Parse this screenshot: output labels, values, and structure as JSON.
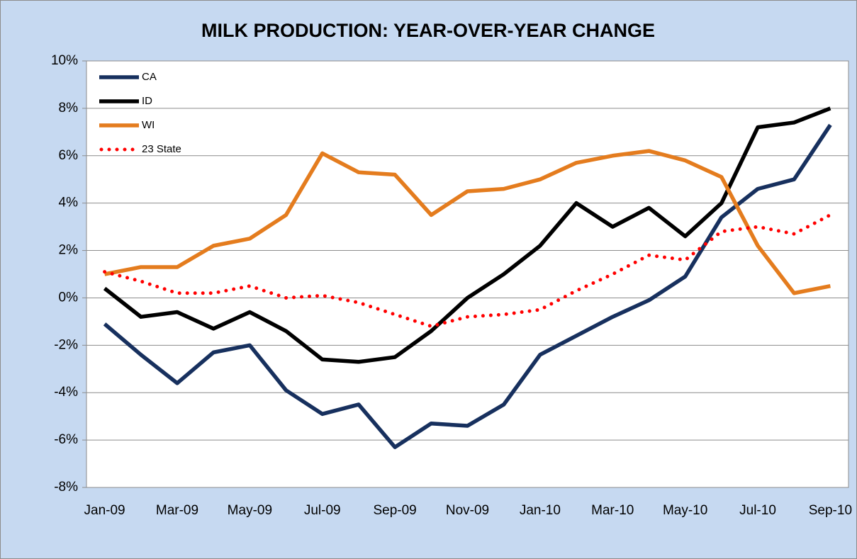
{
  "chart_data": {
    "type": "line",
    "title": "MILK PRODUCTION: YEAR-OVER-YEAR CHANGE",
    "categories": [
      "Jan-09",
      null,
      "Mar-09",
      null,
      "May-09",
      null,
      "Jul-09",
      null,
      "Sep-09",
      null,
      "Nov-09",
      null,
      "Jan-10",
      null,
      "Mar-10",
      null,
      "May-10",
      null,
      "Jul-10",
      null,
      "Sep-10"
    ],
    "series": [
      {
        "name": "CA",
        "color": "#17305e",
        "style": "solid",
        "values": [
          -1.1,
          -2.4,
          -3.6,
          -2.3,
          -2.0,
          -3.9,
          -4.9,
          -4.5,
          -6.3,
          -5.3,
          -5.4,
          -4.5,
          -2.4,
          -1.6,
          -0.8,
          -0.1,
          0.9,
          3.4,
          4.6,
          5.0,
          7.3
        ]
      },
      {
        "name": "ID",
        "color": "#000000",
        "style": "solid",
        "values": [
          0.4,
          -0.8,
          -0.6,
          -1.3,
          -0.6,
          -1.4,
          -2.6,
          -2.7,
          -2.5,
          -1.4,
          0.0,
          1.0,
          2.2,
          4.0,
          3.0,
          3.8,
          2.6,
          4.0,
          7.2,
          7.4,
          8.0
        ]
      },
      {
        "name": "WI",
        "color": "#e47c1e",
        "style": "solid",
        "values": [
          1.0,
          1.3,
          1.3,
          2.2,
          2.5,
          3.5,
          6.1,
          5.3,
          5.2,
          3.5,
          4.5,
          4.6,
          5.0,
          5.7,
          6.0,
          6.2,
          5.8,
          5.1,
          2.2,
          0.2,
          0.5
        ]
      },
      {
        "name": "23 State",
        "color": "#ff0000",
        "style": "dotted",
        "values": [
          1.1,
          0.7,
          0.2,
          0.2,
          0.5,
          0.0,
          0.1,
          -0.2,
          -0.7,
          -1.2,
          -0.8,
          -0.7,
          -0.5,
          0.3,
          1.0,
          1.8,
          1.6,
          2.8,
          3.0,
          2.7,
          3.5
        ]
      }
    ],
    "ylim": [
      -8,
      10
    ],
    "yticks": [
      {
        "value": -8,
        "label": "-8%"
      },
      {
        "value": -6,
        "label": "-6%"
      },
      {
        "value": -4,
        "label": "-4%"
      },
      {
        "value": -2,
        "label": "-2%"
      },
      {
        "value": 0,
        "label": "0%"
      },
      {
        "value": 2,
        "label": "2%"
      },
      {
        "value": 4,
        "label": "4%"
      },
      {
        "value": 6,
        "label": "6%"
      },
      {
        "value": 8,
        "label": "8%"
      },
      {
        "value": 10,
        "label": "10%"
      }
    ],
    "grid": true,
    "legend": "top-left"
  }
}
